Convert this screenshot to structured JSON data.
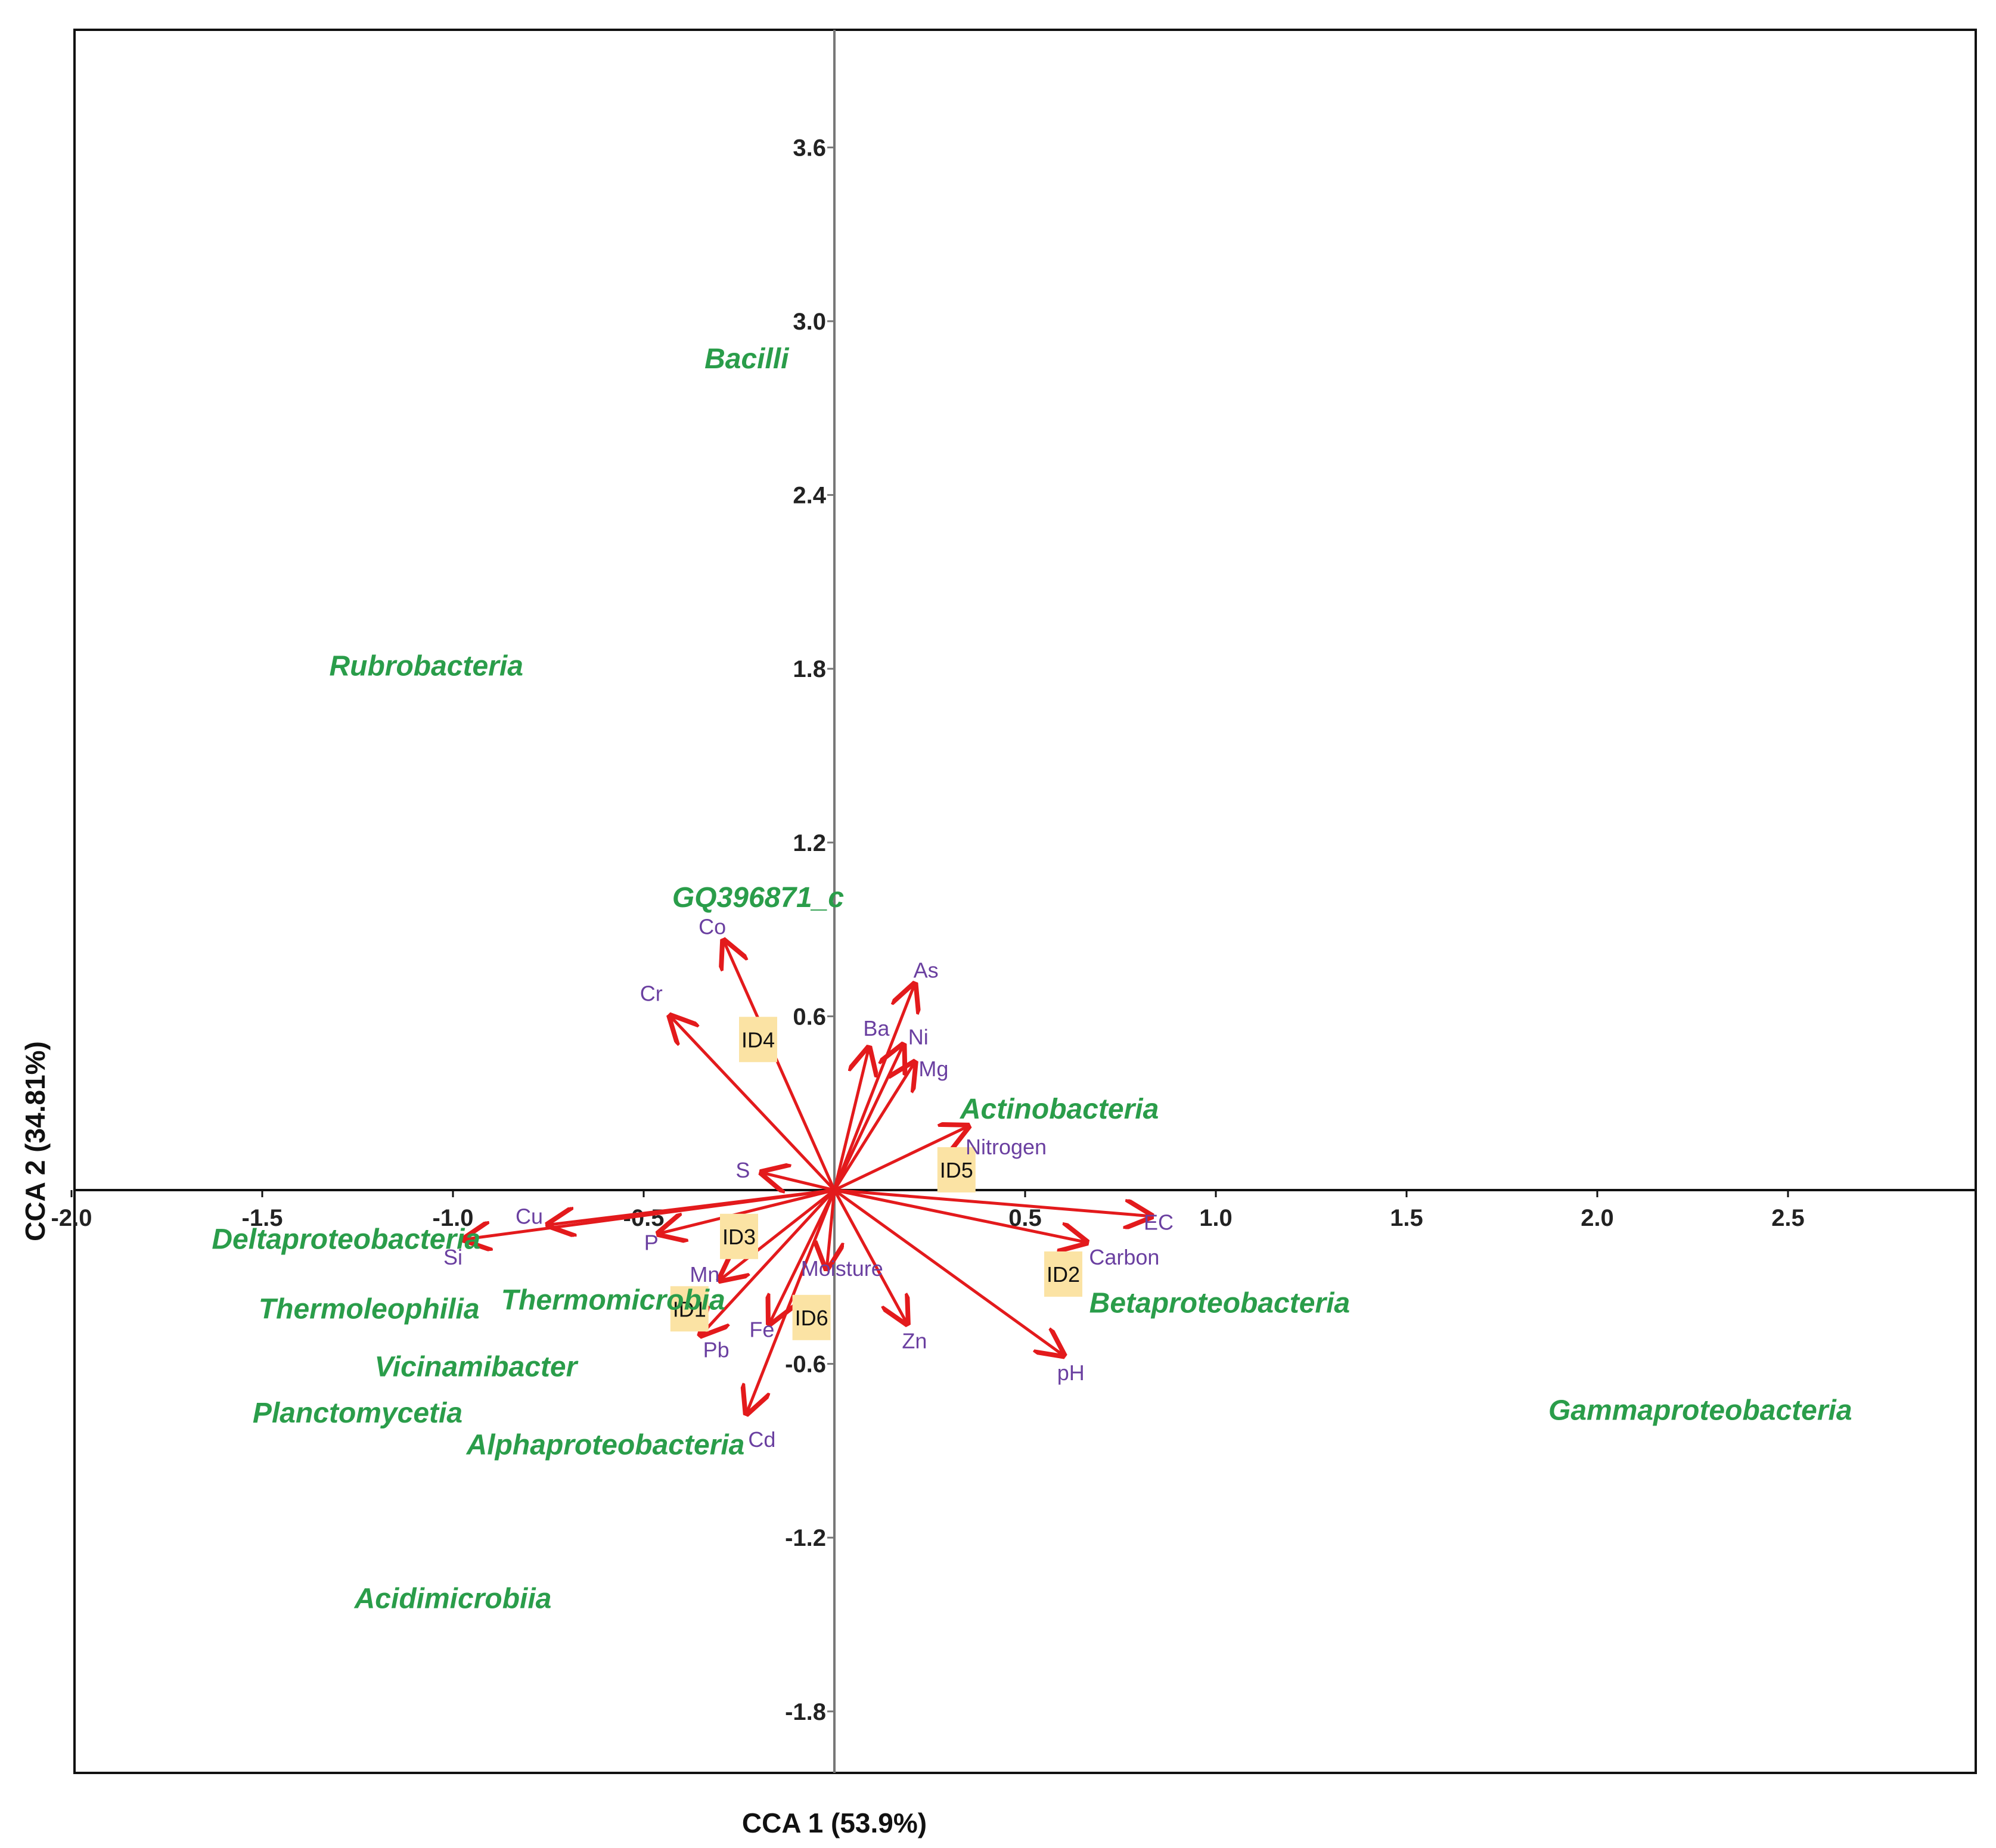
{
  "chart_data": {
    "type": "scatter",
    "subtype": "cca-biplot",
    "xlabel": "CCA 1 (53.9%)",
    "ylabel": "CCA 2 (34.81%)",
    "xlim": [
      -2.0,
      3.0
    ],
    "ylim": [
      -2.0,
      4.0
    ],
    "x_ticks": [
      {
        "value": -2.0,
        "label": "-2.0"
      },
      {
        "value": -1.5,
        "label": "-1.5"
      },
      {
        "value": -1.0,
        "label": "-1.0"
      },
      {
        "value": -0.5,
        "label": "-0.5"
      },
      {
        "value": 0.5,
        "label": "0.5"
      },
      {
        "value": 1.0,
        "label": "1.0"
      },
      {
        "value": 1.5,
        "label": "1.5"
      },
      {
        "value": 2.0,
        "label": "2.0"
      },
      {
        "value": 2.5,
        "label": "2.5"
      }
    ],
    "y_ticks": [
      {
        "value": 3.6,
        "label": "3.6"
      },
      {
        "value": 3.0,
        "label": "3.0"
      },
      {
        "value": 2.4,
        "label": "2.4"
      },
      {
        "value": 1.8,
        "label": "1.8"
      },
      {
        "value": 1.2,
        "label": "1.2"
      },
      {
        "value": 0.6,
        "label": "0.6"
      },
      {
        "value": -0.6,
        "label": "-0.6"
      },
      {
        "value": -1.2,
        "label": "-1.2"
      },
      {
        "value": -1.8,
        "label": "-1.8"
      }
    ],
    "taxa": [
      {
        "name": "Bacilli",
        "x": -0.23,
        "y": 2.87
      },
      {
        "name": "Rubrobacteria",
        "x": -1.07,
        "y": 1.81
      },
      {
        "name": "GQ396871_c",
        "x": -0.2,
        "y": 1.01
      },
      {
        "name": "Actinobacteria",
        "x": 0.59,
        "y": 0.28
      },
      {
        "name": "Deltaproteobacteria",
        "x": -1.28,
        "y": -0.17
      },
      {
        "name": "Thermoleophilia",
        "x": -1.22,
        "y": -0.41
      },
      {
        "name": "Thermomicrobia",
        "x": -0.58,
        "y": -0.38
      },
      {
        "name": "Vicinamibacter",
        "x": -0.94,
        "y": -0.61
      },
      {
        "name": "Planctomycetia",
        "x": -1.25,
        "y": -0.77
      },
      {
        "name": "Alphaproteobacteria",
        "x": -0.6,
        "y": -0.88
      },
      {
        "name": "Betaproteobacteria",
        "x": 1.01,
        "y": -0.39
      },
      {
        "name": "Gammaproteobacteria",
        "x": 2.27,
        "y": -0.76
      },
      {
        "name": "Acidimicrobiia",
        "x": -1.0,
        "y": -1.41
      }
    ],
    "variables": [
      {
        "name": "Co",
        "x": -0.29,
        "y": 0.86,
        "lx": -0.32,
        "ly": 0.91
      },
      {
        "name": "Cr",
        "x": -0.43,
        "y": 0.6,
        "lx": -0.48,
        "ly": 0.68
      },
      {
        "name": "As",
        "x": 0.21,
        "y": 0.71,
        "lx": 0.24,
        "ly": 0.76
      },
      {
        "name": "Ba",
        "x": 0.09,
        "y": 0.49,
        "lx": 0.11,
        "ly": 0.56
      },
      {
        "name": "Ni",
        "x": 0.18,
        "y": 0.5,
        "lx": 0.22,
        "ly": 0.53
      },
      {
        "name": "Mg",
        "x": 0.21,
        "y": 0.44,
        "lx": 0.26,
        "ly": 0.42
      },
      {
        "name": "Nitrogen",
        "x": 0.35,
        "y": 0.22,
        "lx": 0.45,
        "ly": 0.15
      },
      {
        "name": "S",
        "x": -0.19,
        "y": 0.06,
        "lx": -0.24,
        "ly": 0.07
      },
      {
        "name": "Cu",
        "x": -0.75,
        "y": -0.12,
        "lx": -0.8,
        "ly": -0.09
      },
      {
        "name": "Si",
        "x": -0.97,
        "y": -0.17,
        "lx": -1.0,
        "ly": -0.23
      },
      {
        "name": "P",
        "x": -0.46,
        "y": -0.15,
        "lx": -0.48,
        "ly": -0.18
      },
      {
        "name": "Mn",
        "x": -0.3,
        "y": -0.31,
        "lx": -0.34,
        "ly": -0.29
      },
      {
        "name": "Pb",
        "x": -0.35,
        "y": -0.5,
        "lx": -0.31,
        "ly": -0.55
      },
      {
        "name": "Fe",
        "x": -0.17,
        "y": -0.46,
        "lx": -0.19,
        "ly": -0.48
      },
      {
        "name": "Cd",
        "x": -0.23,
        "y": -0.77,
        "lx": -0.19,
        "ly": -0.86
      },
      {
        "name": "Moisture",
        "x": -0.02,
        "y": -0.27,
        "lx": 0.02,
        "ly": -0.27
      },
      {
        "name": "Zn",
        "x": 0.19,
        "y": -0.46,
        "lx": 0.21,
        "ly": -0.52
      },
      {
        "name": "EC",
        "x": 0.83,
        "y": -0.09,
        "lx": 0.85,
        "ly": -0.11
      },
      {
        "name": "Carbon",
        "x": 0.66,
        "y": -0.18,
        "lx": 0.76,
        "ly": -0.23
      },
      {
        "name": "pH",
        "x": 0.6,
        "y": -0.57,
        "lx": 0.62,
        "ly": -0.63
      }
    ],
    "sites": [
      {
        "name": "ID4",
        "x": -0.2,
        "y": 0.52
      },
      {
        "name": "ID3",
        "x": -0.25,
        "y": -0.16
      },
      {
        "name": "ID1",
        "x": -0.38,
        "y": -0.41
      },
      {
        "name": "ID5",
        "x": 0.32,
        "y": 0.07
      },
      {
        "name": "ID6",
        "x": -0.06,
        "y": -0.44
      },
      {
        "name": "ID2",
        "x": 0.6,
        "y": -0.29
      }
    ],
    "colors": {
      "taxa": "#2a9d4a",
      "variables": "#6a3fa0",
      "arrows": "#e31a1c",
      "site_box": "#fbe3a4",
      "axes": "#555555",
      "frame": "#111111"
    }
  }
}
